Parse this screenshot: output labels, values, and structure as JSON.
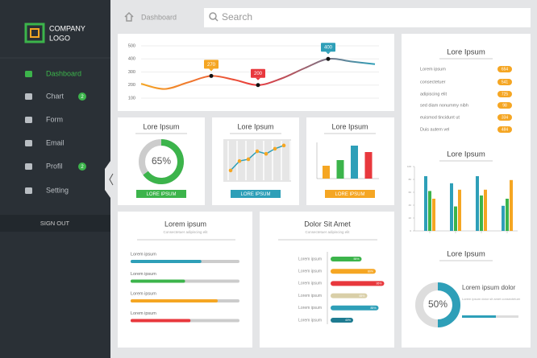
{
  "sidebar": {
    "logo": [
      "COMPANY",
      "LOGO"
    ],
    "menu": [
      {
        "label": "Dashboard",
        "active": true
      },
      {
        "label": "Chart",
        "badge": 2
      },
      {
        "label": "Form"
      },
      {
        "label": "Email"
      },
      {
        "label": "Profil",
        "badge": 2
      },
      {
        "label": "Setting"
      }
    ],
    "sign_out": "SIGN OUT"
  },
  "topbar": {
    "breadcrumb": "Dashboard",
    "search": "Search"
  },
  "line_panel": {
    "ylim": [
      100,
      500
    ],
    "yticks": [
      100,
      200,
      300,
      400,
      500
    ],
    "x": [
      0,
      1,
      2,
      3,
      4,
      5,
      6,
      7,
      8,
      9,
      10
    ],
    "values": [
      210,
      170,
      220,
      270,
      240,
      200,
      250,
      330,
      400,
      380,
      360
    ],
    "line_colors": [
      "#f5a623",
      "#e8383d",
      "#2e9fb8"
    ],
    "markers": [
      {
        "x": 3,
        "value": 270,
        "color": "#f5a623"
      },
      {
        "x": 5,
        "value": 200,
        "color": "#e8383d"
      },
      {
        "x": 8,
        "value": 400,
        "color": "#2e9fb8"
      }
    ]
  },
  "cards": [
    {
      "title": "Lore Ipsum",
      "button": "LORE IPSUM",
      "color": "#3cb44b",
      "value": 65,
      "value_label": "65%"
    },
    {
      "title": "Lore Ipsum",
      "button": "LORE IPSUM",
      "color": "#2e9fb8",
      "points": [
        18,
        44,
        49,
        71,
        64,
        78,
        87
      ],
      "point_color": "#f5a623"
    },
    {
      "title": "Lore Ipsum",
      "button": "LORE IPSUM",
      "color": "#f5a623",
      "ylim": [
        0,
        45
      ],
      "bars": [
        {
          "value": 16,
          "color": "#f5a623"
        },
        {
          "value": 23,
          "color": "#3cb44b"
        },
        {
          "value": 41,
          "color": "#2e9fb8"
        },
        {
          "value": 33,
          "color": "#e8383d"
        }
      ]
    }
  ],
  "list_panel": {
    "title": "Lore Ipsum",
    "color": "#f5a623",
    "items": [
      {
        "label": "Lorem ipsum",
        "value": 654
      },
      {
        "label": "consectetuer",
        "value": 541
      },
      {
        "label": "adipiscing elit",
        "value": 725
      },
      {
        "label": "sed diam nonummy nibh",
        "value": 98
      },
      {
        "label": "euismod tincidunt ut",
        "value": 334
      },
      {
        "label": "Duis autem vel",
        "value": 484
      }
    ]
  },
  "group_chart": {
    "title": "Lore Ipsum",
    "ylim": [
      0,
      100
    ],
    "yticks": [
      0,
      20,
      40,
      60,
      80,
      100
    ],
    "series": [
      {
        "color": "#2e9fb8",
        "values": [
          85,
          74,
          85,
          39
        ]
      },
      {
        "color": "#3cb44b",
        "values": [
          62,
          38,
          55,
          50
        ]
      },
      {
        "color": "#f5a623",
        "values": [
          50,
          64,
          64,
          79
        ]
      }
    ]
  },
  "donut_panel": {
    "title": "Lore Ipsum",
    "value": 50,
    "value_label": "50%",
    "color": "#2e9fb8",
    "heading": "Lorem ipsum dolor",
    "text": "Lorem ipsum dolor sit amet consectetuer",
    "progress": 60
  },
  "progress_panel": {
    "title": "Lorem ipsum",
    "subtitle": "Consectetuer adipiscing elit",
    "bars": [
      {
        "label": "Lorem ipsum",
        "value": 65,
        "color": "#2e9fb8"
      },
      {
        "label": "Lorem ipsum",
        "value": 50,
        "color": "#3cb44b"
      },
      {
        "label": "Lorem ipsum",
        "value": 80,
        "color": "#f5a623"
      },
      {
        "label": "Lorem ipsum",
        "value": 55,
        "color": "#e8383d"
      }
    ]
  },
  "hbar_panel": {
    "title": "Dolor Sit Amet",
    "subtitle": "Consectetuer adipiscing elit",
    "bars": [
      {
        "label": "Lorem ipsum",
        "value": 55,
        "value_label": "55%",
        "color": "#3cb44b"
      },
      {
        "label": "Lorem ipsum",
        "value": 80,
        "value_label": "80%",
        "color": "#f5a623"
      },
      {
        "label": "Lorem ipsum",
        "value": 95,
        "value_label": "95%",
        "color": "#e8383d"
      },
      {
        "label": "Lorem ipsum",
        "value": 65,
        "value_label": "65%",
        "color": "#d9cfa8"
      },
      {
        "label": "Lorem ipsum",
        "value": 85,
        "value_label": "85%",
        "color": "#2e9fb8"
      },
      {
        "label": "Lorem ipsum",
        "value": 40,
        "value_label": "40%",
        "color": "#1e7b91"
      }
    ]
  }
}
